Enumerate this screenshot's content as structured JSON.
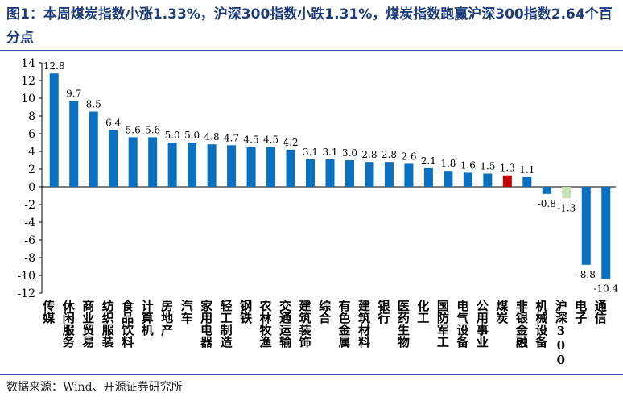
{
  "title": "图1：本周煤炭指数小涨1.33%，沪深300指数小跌1.31%，煤炭指数跑赢沪深300指数2.64个百分点",
  "source": "数据来源：Wind、开源证券研究所",
  "colors": {
    "default": "#0b70c0",
    "highlight": "#c00000",
    "benchmark": "#c6e0b4"
  },
  "chart_data": {
    "type": "bar",
    "title": "",
    "xlabel": "",
    "ylabel": "",
    "ylim": [
      -12,
      14
    ],
    "yticks": [
      14,
      12,
      10,
      8,
      6,
      4,
      2,
      0,
      -2,
      -4,
      -6,
      -8,
      -10,
      -12
    ],
    "grid": false,
    "categories": [
      "传媒",
      "休闲服务",
      "商业贸易",
      "纺织服装",
      "食品饮料",
      "计算机",
      "房地产",
      "汽车",
      "家用电器",
      "轻工制造",
      "钢铁",
      "农林牧渔",
      "交通运输",
      "建筑装饰",
      "综合",
      "有色金属",
      "建筑材料",
      "银行",
      "医药生物",
      "化工",
      "国防军工",
      "电气设备",
      "公用事业",
      "煤炭",
      "非银金融",
      "机械设备",
      "沪深300",
      "电子",
      "通信"
    ],
    "values": [
      12.8,
      9.7,
      8.5,
      6.4,
      5.6,
      5.6,
      5.0,
      5.0,
      4.8,
      4.7,
      4.5,
      4.5,
      4.2,
      3.1,
      3.1,
      3.0,
      2.8,
      2.8,
      2.6,
      2.1,
      1.8,
      1.6,
      1.5,
      1.3,
      1.1,
      -0.8,
      -1.3,
      -8.8,
      -10.4
    ],
    "labels": [
      "12.8",
      "9.7",
      "8.5",
      "6.4",
      "5.6",
      "5.6",
      "5.0",
      "5.0",
      "4.8",
      "4.7",
      "4.5",
      "4.5",
      "4.2",
      "3.1",
      "3.1",
      "3.0",
      "2.8",
      "2.8",
      "2.6",
      "2.1",
      "1.8",
      "1.6",
      "1.5",
      "1.3",
      "1.1",
      "-0.8",
      "-1.3",
      "-8.8",
      "-10.4"
    ],
    "highlight": "煤炭",
    "benchmark": "沪深300"
  }
}
